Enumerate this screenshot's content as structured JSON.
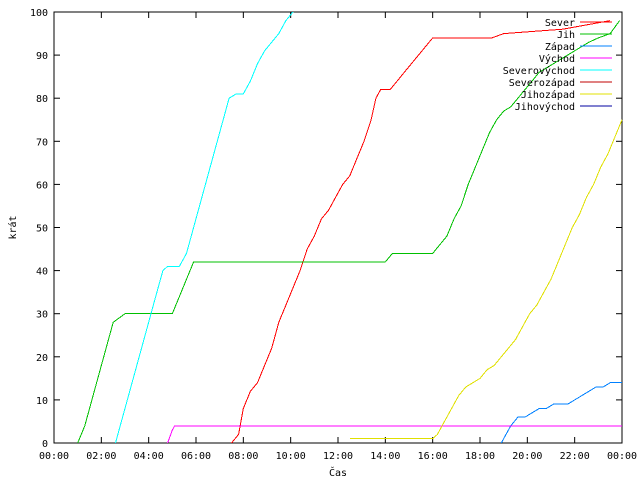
{
  "chart_data": {
    "type": "line",
    "title": "",
    "xlabel": "Čas",
    "ylabel": "krát",
    "xlim": [
      0,
      24
    ],
    "ylim": [
      0,
      100
    ],
    "x_ticks": [
      {
        "value": 0,
        "label": "00:00"
      },
      {
        "value": 2,
        "label": "02:00"
      },
      {
        "value": 4,
        "label": "04:00"
      },
      {
        "value": 6,
        "label": "06:00"
      },
      {
        "value": 8,
        "label": "08:00"
      },
      {
        "value": 10,
        "label": "10:00"
      },
      {
        "value": 12,
        "label": "12:00"
      },
      {
        "value": 14,
        "label": "14:00"
      },
      {
        "value": 16,
        "label": "16:00"
      },
      {
        "value": 18,
        "label": "18:00"
      },
      {
        "value": 20,
        "label": "20:00"
      },
      {
        "value": 22,
        "label": "22:00"
      },
      {
        "value": 24,
        "label": "00:00"
      }
    ],
    "y_ticks": [
      0,
      10,
      20,
      30,
      40,
      50,
      60,
      70,
      80,
      90,
      100
    ],
    "legend_position": "top-right",
    "grid": false,
    "series": [
      {
        "name": "Sever",
        "color": "#ff0000",
        "x": [
          7.5,
          7.8,
          8.0,
          8.3,
          8.6,
          8.9,
          9.2,
          9.5,
          9.8,
          10.1,
          10.4,
          10.7,
          11.0,
          11.3,
          11.6,
          11.9,
          12.2,
          12.5,
          12.8,
          13.1,
          13.4,
          13.6,
          13.8,
          14.2,
          14.5,
          14.8,
          15.1,
          15.4,
          15.7,
          16.0,
          16.3,
          16.6,
          18.5,
          19.0,
          21.5,
          23.5
        ],
        "y": [
          0,
          2,
          8,
          12,
          14,
          18,
          22,
          28,
          32,
          36,
          40,
          45,
          48,
          52,
          54,
          57,
          60,
          62,
          66,
          70,
          75,
          80,
          82,
          82,
          84,
          86,
          88,
          90,
          92,
          94,
          94,
          94,
          94,
          95,
          96,
          98
        ]
      },
      {
        "name": "Jih",
        "color": "#00c000",
        "x": [
          1.0,
          1.3,
          1.6,
          1.9,
          2.2,
          2.5,
          3.0,
          4.0,
          5.0,
          5.3,
          5.6,
          5.9,
          6.2,
          9.0,
          12.0,
          14.0,
          14.3,
          16.0,
          16.3,
          16.6,
          16.9,
          17.2,
          17.5,
          17.8,
          18.1,
          18.4,
          18.7,
          19.0,
          19.3,
          19.6,
          19.9,
          20.2,
          20.5,
          20.8,
          21.1,
          21.4,
          21.7,
          22.0,
          22.3,
          22.6,
          23.0,
          23.5,
          23.9
        ],
        "y": [
          0,
          4,
          10,
          16,
          22,
          28,
          30,
          30,
          30,
          34,
          38,
          42,
          42,
          42,
          42,
          42,
          44,
          44,
          46,
          48,
          52,
          55,
          60,
          64,
          68,
          72,
          75,
          77,
          78,
          80,
          82,
          84,
          86,
          87,
          88,
          89,
          90,
          91,
          92,
          93,
          94,
          95,
          98
        ]
      },
      {
        "name": "Západ",
        "color": "#0080ff",
        "x": [
          18.9,
          19.1,
          19.3,
          19.6,
          19.9,
          20.2,
          20.5,
          20.8,
          21.1,
          21.4,
          21.7,
          22.0,
          22.3,
          22.6,
          22.9,
          23.2,
          23.5,
          24.0
        ],
        "y": [
          0,
          2,
          4,
          6,
          6,
          7,
          8,
          8,
          9,
          9,
          9,
          10,
          11,
          12,
          13,
          13,
          14,
          14
        ]
      },
      {
        "name": "Východ",
        "color": "#ff00ff",
        "x": [
          4.8,
          5.0,
          5.1,
          8.0,
          12.0,
          16.0,
          20.0,
          24.0
        ],
        "y": [
          0,
          3,
          4,
          4,
          4,
          4,
          4,
          4
        ]
      },
      {
        "name": "Severovýchod",
        "color": "#00ffff",
        "x": [
          2.6,
          2.9,
          3.2,
          3.5,
          3.8,
          4.1,
          4.4,
          4.6,
          4.8,
          5.0,
          5.3,
          5.6,
          5.9,
          6.2,
          6.5,
          6.8,
          7.1,
          7.4,
          7.7,
          8.0,
          8.3,
          8.6,
          8.9,
          9.2,
          9.5,
          9.8,
          10.1
        ],
        "y": [
          0,
          6,
          12,
          18,
          24,
          30,
          36,
          40,
          41,
          41,
          41,
          44,
          50,
          56,
          62,
          68,
          74,
          80,
          81,
          81,
          84,
          88,
          91,
          93,
          95,
          98,
          100
        ]
      },
      {
        "name": "Severozápad",
        "color": "#c00000",
        "x": [],
        "y": []
      },
      {
        "name": "Jihozápad",
        "color": "#e0e000",
        "x": [
          12.5,
          14.0,
          16.0,
          16.2,
          16.5,
          16.8,
          17.1,
          17.4,
          17.7,
          18.0,
          18.3,
          18.6,
          18.9,
          19.2,
          19.5,
          19.8,
          20.1,
          20.4,
          20.7,
          21.0,
          21.3,
          21.6,
          21.9,
          22.2,
          22.5,
          22.8,
          23.1,
          23.4,
          23.7,
          24.0
        ],
        "y": [
          1,
          1,
          1,
          2,
          5,
          8,
          11,
          13,
          14,
          15,
          17,
          18,
          20,
          22,
          24,
          27,
          30,
          32,
          35,
          38,
          42,
          46,
          50,
          53,
          57,
          60,
          64,
          67,
          71,
          75
        ]
      },
      {
        "name": "Jihovýchod",
        "color": "#0000a0",
        "x": [],
        "y": []
      }
    ]
  }
}
